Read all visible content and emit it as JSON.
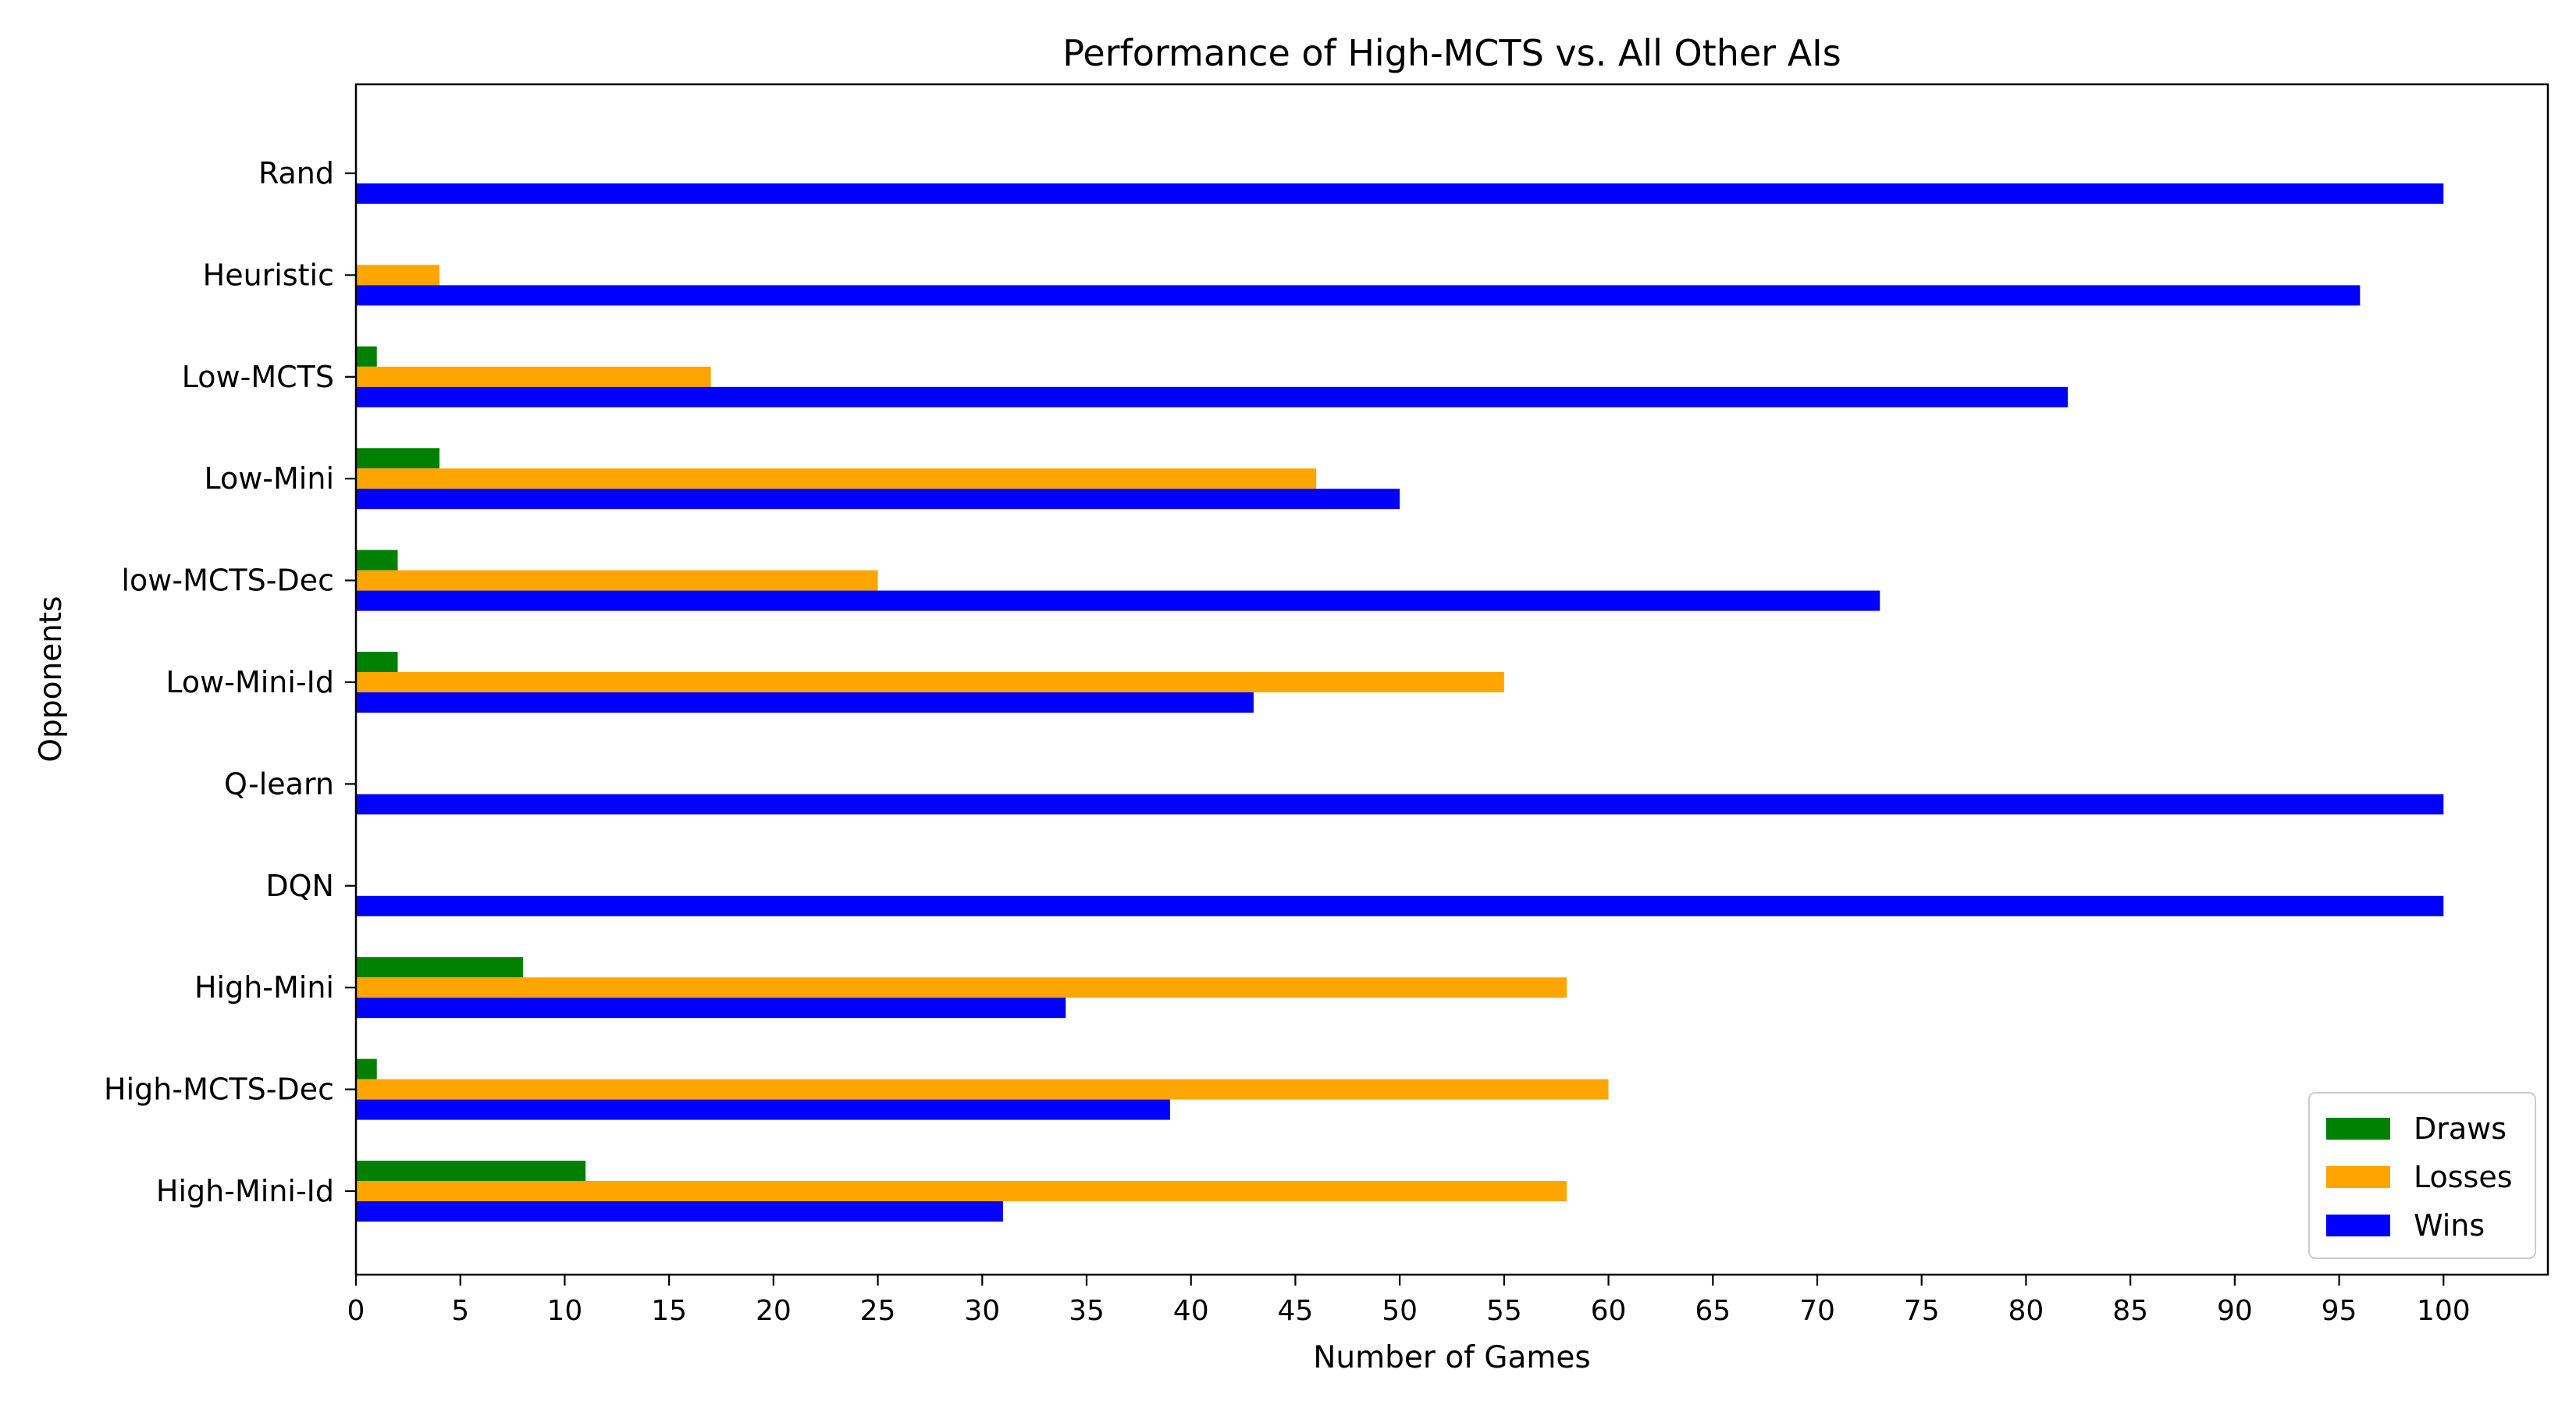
{
  "chart_data": {
    "type": "bar",
    "orientation": "horizontal",
    "title": "Performance of High-MCTS vs. All Other AIs",
    "xlabel": "Number of Games",
    "ylabel": "Opponents",
    "xlim": [
      0,
      105
    ],
    "xticks": [
      0,
      5,
      10,
      15,
      20,
      25,
      30,
      35,
      40,
      45,
      50,
      55,
      60,
      65,
      70,
      75,
      80,
      85,
      90,
      95,
      100
    ],
    "categories": [
      "Rand",
      "Heuristic",
      "Low-MCTS",
      "Low-Mini",
      "low-MCTS-Dec",
      "Low-Mini-Id",
      "Q-learn",
      "DQN",
      "High-Mini",
      "High-MCTS-Dec",
      "High-Mini-Id"
    ],
    "series": [
      {
        "name": "Draws",
        "color": "#008000",
        "values": [
          0,
          0,
          1,
          4,
          2,
          2,
          0,
          0,
          8,
          1,
          11
        ]
      },
      {
        "name": "Losses",
        "color": "#ffa500",
        "values": [
          0,
          4,
          17,
          46,
          25,
          55,
          0,
          0,
          58,
          60,
          58
        ]
      },
      {
        "name": "Wins",
        "color": "#0000ff",
        "values": [
          100,
          96,
          82,
          50,
          73,
          43,
          100,
          100,
          34,
          39,
          31
        ]
      }
    ],
    "grid": false,
    "legend_position": "bottom-right"
  }
}
